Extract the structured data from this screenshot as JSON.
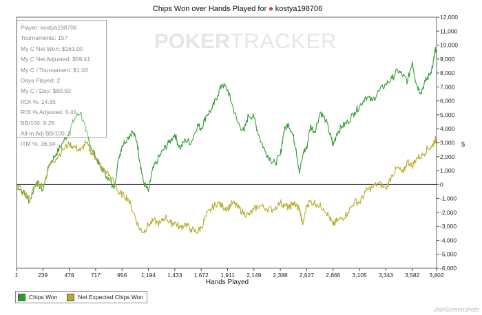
{
  "chart_data": {
    "type": "line",
    "title_prefix": "Chips Won over Hands Played for",
    "player_name": "kostya198706",
    "xlabel": "Hands Played",
    "ylabel": "$",
    "xlim": [
      1,
      3802
    ],
    "ylim": [
      -6000,
      12000
    ],
    "x_ticks": [
      "1",
      "239",
      "478",
      "717",
      "956",
      "1,194",
      "1,433",
      "1,672",
      "1,911",
      "2,149",
      "2,388",
      "2,627",
      "2,866",
      "3,105",
      "3,343",
      "3,582",
      "3,802"
    ],
    "y_ticks": [
      "12,000",
      "11,000",
      "10,000",
      "9,000",
      "8,000",
      "7,000",
      "6,000",
      "5,000",
      "4,000",
      "3,000",
      "2,000",
      "1,000",
      "0",
      "-1,000",
      "-2,000",
      "-3,000",
      "-4,000",
      "-5,000",
      "-6,000"
    ],
    "series": [
      {
        "name": "Chips Won",
        "color": "#2e9d2e",
        "points": [
          [
            1,
            0
          ],
          [
            60,
            -500
          ],
          [
            120,
            -1200
          ],
          [
            180,
            200
          ],
          [
            239,
            -400
          ],
          [
            300,
            1500
          ],
          [
            360,
            2200
          ],
          [
            420,
            3000
          ],
          [
            478,
            3800
          ],
          [
            530,
            4800
          ],
          [
            580,
            5200
          ],
          [
            630,
            3800
          ],
          [
            680,
            2600
          ],
          [
            717,
            2000
          ],
          [
            760,
            1300
          ],
          [
            820,
            600
          ],
          [
            880,
            -300
          ],
          [
            930,
            2000
          ],
          [
            956,
            2800
          ],
          [
            1010,
            3400
          ],
          [
            1050,
            3800
          ],
          [
            1090,
            3100
          ],
          [
            1120,
            1500
          ],
          [
            1150,
            200
          ],
          [
            1194,
            -500
          ],
          [
            1230,
            1000
          ],
          [
            1280,
            1800
          ],
          [
            1330,
            2500
          ],
          [
            1380,
            3000
          ],
          [
            1433,
            3600
          ],
          [
            1480,
            2600
          ],
          [
            1530,
            3200
          ],
          [
            1580,
            3000
          ],
          [
            1640,
            4300
          ],
          [
            1672,
            4000
          ],
          [
            1720,
            5000
          ],
          [
            1770,
            5400
          ],
          [
            1820,
            6400
          ],
          [
            1860,
            7200
          ],
          [
            1911,
            6800
          ],
          [
            1950,
            5800
          ],
          [
            2000,
            4500
          ],
          [
            2060,
            3800
          ],
          [
            2100,
            5000
          ],
          [
            2149,
            4800
          ],
          [
            2200,
            3400
          ],
          [
            2250,
            2400
          ],
          [
            2300,
            1800
          ],
          [
            2340,
            1500
          ],
          [
            2388,
            2100
          ],
          [
            2420,
            3800
          ],
          [
            2460,
            4400
          ],
          [
            2500,
            3600
          ],
          [
            2530,
            2600
          ],
          [
            2560,
            800
          ],
          [
            2600,
            2400
          ],
          [
            2627,
            2600
          ],
          [
            2660,
            4200
          ],
          [
            2700,
            3800
          ],
          [
            2750,
            5200
          ],
          [
            2800,
            4600
          ],
          [
            2850,
            3300
          ],
          [
            2866,
            2800
          ],
          [
            2900,
            3700
          ],
          [
            2950,
            4200
          ],
          [
            3000,
            4500
          ],
          [
            3060,
            5200
          ],
          [
            3105,
            5600
          ],
          [
            3160,
            6300
          ],
          [
            3220,
            6000
          ],
          [
            3280,
            6700
          ],
          [
            3343,
            7200
          ],
          [
            3400,
            7600
          ],
          [
            3450,
            8200
          ],
          [
            3500,
            7800
          ],
          [
            3540,
            7400
          ],
          [
            3582,
            8800
          ],
          [
            3620,
            7200
          ],
          [
            3660,
            6600
          ],
          [
            3700,
            7400
          ],
          [
            3740,
            7900
          ],
          [
            3770,
            8600
          ],
          [
            3790,
            9700
          ],
          [
            3802,
            9200
          ]
        ]
      },
      {
        "name": "Net Expected Chips Won",
        "color": "#b8aa2a",
        "points": [
          [
            1,
            0
          ],
          [
            60,
            -600
          ],
          [
            120,
            -1000
          ],
          [
            180,
            100
          ],
          [
            239,
            -100
          ],
          [
            300,
            1400
          ],
          [
            360,
            1900
          ],
          [
            420,
            2500
          ],
          [
            478,
            2900
          ],
          [
            530,
            2700
          ],
          [
            580,
            2400
          ],
          [
            630,
            3000
          ],
          [
            680,
            2300
          ],
          [
            717,
            2000
          ],
          [
            760,
            1200
          ],
          [
            820,
            900
          ],
          [
            880,
            200
          ],
          [
            930,
            -600
          ],
          [
            956,
            -700
          ],
          [
            1010,
            -1000
          ],
          [
            1060,
            -2000
          ],
          [
            1110,
            -3100
          ],
          [
            1150,
            -3400
          ],
          [
            1194,
            -2900
          ],
          [
            1240,
            -2600
          ],
          [
            1300,
            -2800
          ],
          [
            1350,
            -2300
          ],
          [
            1400,
            -2800
          ],
          [
            1433,
            -2700
          ],
          [
            1480,
            -3100
          ],
          [
            1530,
            -2800
          ],
          [
            1580,
            -3200
          ],
          [
            1630,
            -3400
          ],
          [
            1672,
            -3100
          ],
          [
            1720,
            -2200
          ],
          [
            1770,
            -1700
          ],
          [
            1820,
            -1300
          ],
          [
            1870,
            -1600
          ],
          [
            1911,
            -1700
          ],
          [
            1960,
            -1300
          ],
          [
            2000,
            -1600
          ],
          [
            2050,
            -2000
          ],
          [
            2100,
            -2200
          ],
          [
            2149,
            -1800
          ],
          [
            2200,
            -1500
          ],
          [
            2260,
            -1700
          ],
          [
            2320,
            -1800
          ],
          [
            2388,
            -1300
          ],
          [
            2430,
            -1500
          ],
          [
            2470,
            -1700
          ],
          [
            2500,
            -1300
          ],
          [
            2530,
            -1500
          ],
          [
            2560,
            -1700
          ],
          [
            2590,
            -2900
          ],
          [
            2627,
            -1500
          ],
          [
            2660,
            -1200
          ],
          [
            2720,
            -1400
          ],
          [
            2780,
            -1700
          ],
          [
            2830,
            -2300
          ],
          [
            2866,
            -2900
          ],
          [
            2900,
            -2600
          ],
          [
            2950,
            -2400
          ],
          [
            3000,
            -2000
          ],
          [
            3060,
            -1200
          ],
          [
            3105,
            -1300
          ],
          [
            3160,
            -500
          ],
          [
            3220,
            -200
          ],
          [
            3280,
            100
          ],
          [
            3343,
            -300
          ],
          [
            3400,
            700
          ],
          [
            3450,
            1200
          ],
          [
            3500,
            800
          ],
          [
            3540,
            1700
          ],
          [
            3582,
            1300
          ],
          [
            3620,
            1900
          ],
          [
            3680,
            2100
          ],
          [
            3720,
            2600
          ],
          [
            3760,
            2700
          ],
          [
            3790,
            3300
          ],
          [
            3802,
            2900
          ]
        ]
      }
    ]
  },
  "stats": [
    "Player: kostya198706",
    "Tournaments: 157",
    "My C Net Won: $161.00",
    "My C Net Adjusted: $59.41",
    "My C / Tournament: $1.03",
    "Days Played: 2",
    "My C / Day: $80.50",
    "ROI %: 14.65",
    "ROI % Adjusted: 5.41",
    "BB/100: 9.26",
    "All-In Adj BB/100: 3",
    "ITM %: 36.94"
  ],
  "watermark": {
    "brand": "POKER",
    "suffix": "TRACKER"
  },
  "credit": "JoinScreenshots"
}
